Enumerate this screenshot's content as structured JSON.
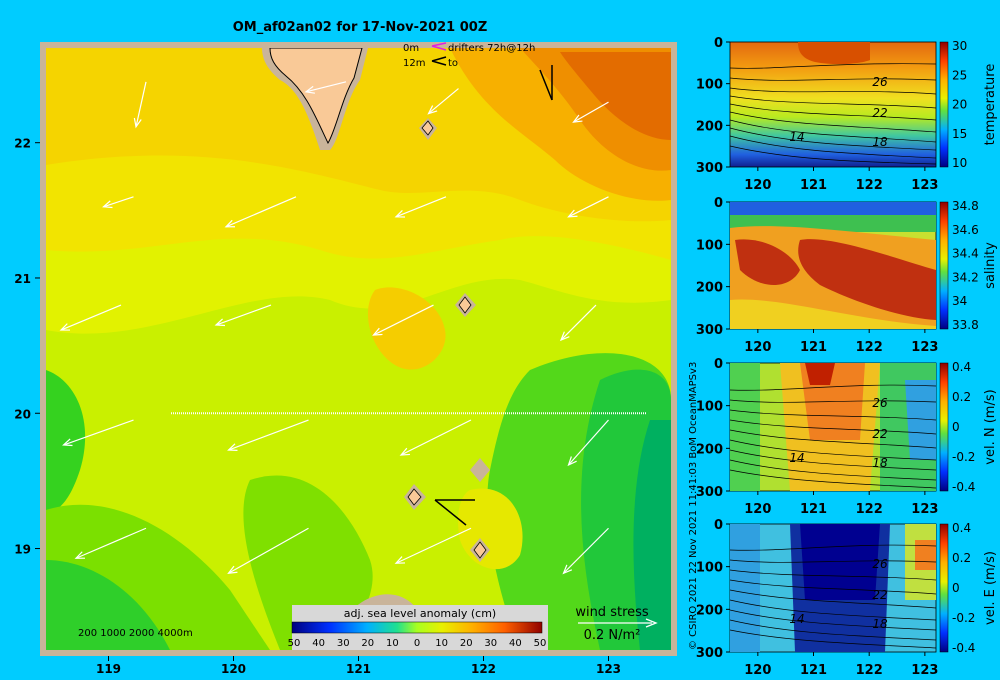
{
  "title": "OM_af02an02 for 17-Nov-2021 00Z",
  "credit": "© CSIRO 2021   22 Nov 2021 11:41:03 BoM OceanMAPSv3",
  "colors": {
    "background": "#00ccff",
    "land": "#f9c997",
    "frame": "#c9b49a"
  },
  "map": {
    "legend_lines": [
      {
        "depth": "0m",
        "text": "drifters 72h@12h"
      },
      {
        "depth": "12m",
        "text": "to"
      }
    ],
    "bathy_labels": "200  1000  2000  4000m",
    "wind_label": "wind stress",
    "wind_scale": "0.2 N/m²",
    "colorbar": {
      "label": "adj. sea level anomaly (cm)",
      "ticks": [
        "50",
        "40",
        "30",
        "20",
        "10",
        "0",
        "10",
        "20",
        "30",
        "40",
        "50"
      ]
    }
  },
  "chart_data": [
    {
      "type": "heatmap",
      "title": "",
      "xlabel": "",
      "ylabel": "",
      "x_ticks": [
        "119",
        "120",
        "121",
        "122",
        "123"
      ],
      "y_ticks": [
        "22",
        "21",
        "20",
        "19"
      ],
      "xlim": [
        118.5,
        123.5
      ],
      "ylim": [
        18.25,
        22.7
      ],
      "section_line": {
        "lon": [
          119.5,
          123.3
        ],
        "lat": 20
      },
      "vectors": [
        {
          "lon": 119.3,
          "lat": 22.45,
          "u": -0.1,
          "v": -0.45
        },
        {
          "lon": 120.9,
          "lat": 22.45,
          "u": -0.4,
          "v": -0.1
        },
        {
          "lon": 121.8,
          "lat": 22.4,
          "u": -0.3,
          "v": -0.25
        },
        {
          "lon": 123.0,
          "lat": 22.3,
          "u": -0.35,
          "v": -0.2
        },
        {
          "lon": 119.2,
          "lat": 21.6,
          "u": -0.3,
          "v": -0.1
        },
        {
          "lon": 120.5,
          "lat": 21.6,
          "u": -0.7,
          "v": -0.3
        },
        {
          "lon": 121.7,
          "lat": 21.6,
          "u": -0.5,
          "v": -0.2
        },
        {
          "lon": 123.0,
          "lat": 21.6,
          "u": -0.4,
          "v": -0.2
        },
        {
          "lon": 119.1,
          "lat": 20.8,
          "u": -0.6,
          "v": -0.25
        },
        {
          "lon": 120.3,
          "lat": 20.8,
          "u": -0.55,
          "v": -0.2
        },
        {
          "lon": 121.6,
          "lat": 20.8,
          "u": -0.6,
          "v": -0.3
        },
        {
          "lon": 122.9,
          "lat": 20.8,
          "u": -0.35,
          "v": -0.35
        },
        {
          "lon": 119.2,
          "lat": 19.95,
          "u": -0.7,
          "v": -0.25
        },
        {
          "lon": 120.6,
          "lat": 19.95,
          "u": -0.8,
          "v": -0.3
        },
        {
          "lon": 121.9,
          "lat": 19.95,
          "u": -0.7,
          "v": -0.35
        },
        {
          "lon": 123.0,
          "lat": 19.95,
          "u": -0.4,
          "v": -0.45
        },
        {
          "lon": 119.3,
          "lat": 19.15,
          "u": -0.7,
          "v": -0.3
        },
        {
          "lon": 120.6,
          "lat": 19.15,
          "u": -0.8,
          "v": -0.45
        },
        {
          "lon": 121.9,
          "lat": 19.15,
          "u": -0.75,
          "v": -0.35
        },
        {
          "lon": 123.0,
          "lat": 19.15,
          "u": -0.45,
          "v": -0.45
        }
      ]
    },
    {
      "type": "heatmap",
      "xlabel": "",
      "ylabel": "temperature",
      "x_ticks": [
        "120",
        "121",
        "122",
        "123"
      ],
      "y_ticks": [
        "0",
        "100",
        "200",
        "300"
      ],
      "colorbar_ticks": [
        "30",
        "25",
        "20",
        "15",
        "10"
      ],
      "contour_labels": [
        "26",
        "22",
        "18",
        "14"
      ]
    },
    {
      "type": "heatmap",
      "xlabel": "",
      "ylabel": "salinity",
      "x_ticks": [
        "120",
        "121",
        "122",
        "123"
      ],
      "y_ticks": [
        "0",
        "100",
        "200",
        "300"
      ],
      "colorbar_ticks": [
        "34.8",
        "34.6",
        "34.4",
        "34.2",
        "34",
        "33.8"
      ]
    },
    {
      "type": "heatmap",
      "xlabel": "",
      "ylabel": "vel. N (m/s)",
      "x_ticks": [
        "120",
        "121",
        "122",
        "123"
      ],
      "y_ticks": [
        "0",
        "100",
        "200",
        "300"
      ],
      "colorbar_ticks": [
        "0.4",
        "0.2",
        "0",
        "-0.2",
        "-0.4"
      ],
      "contour_labels": [
        "26",
        "22",
        "18",
        "14"
      ]
    },
    {
      "type": "heatmap",
      "xlabel": "",
      "ylabel": "vel. E (m/s)",
      "x_ticks": [
        "120",
        "121",
        "122",
        "123"
      ],
      "y_ticks": [
        "0",
        "100",
        "200",
        "300"
      ],
      "colorbar_ticks": [
        "0.4",
        "0.2",
        "0",
        "-0.2",
        "-0.4"
      ],
      "contour_labels": [
        "26",
        "22",
        "18",
        "14"
      ]
    }
  ]
}
